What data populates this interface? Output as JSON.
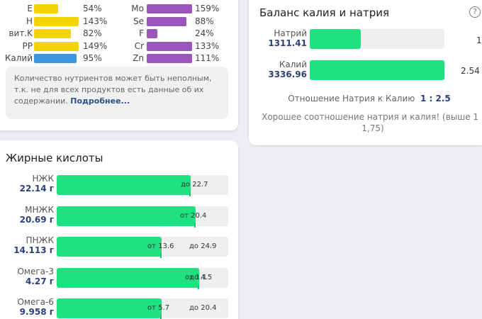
{
  "nutrients": {
    "left": [
      {
        "name": "E",
        "pct": "54%",
        "fill": 0.54,
        "color": "#f2d409"
      },
      {
        "name": "H",
        "pct": "143%",
        "fill": 1.0,
        "color": "#f2d409"
      },
      {
        "name": "вит.K",
        "pct": "82%",
        "fill": 0.82,
        "color": "#f2d409"
      },
      {
        "name": "PP",
        "pct": "149%",
        "fill": 1.0,
        "color": "#f2d409"
      },
      {
        "name": "Калий",
        "pct": "95%",
        "fill": 0.95,
        "color": "#3b94dc"
      }
    ],
    "right": [
      {
        "name": "Mo",
        "pct": "159%",
        "fill": 1.0,
        "color": "#9b55bd"
      },
      {
        "name": "Se",
        "pct": "88%",
        "fill": 0.88,
        "color": "#9b55bd"
      },
      {
        "name": "F",
        "pct": "24%",
        "fill": 0.24,
        "color": "#9b55bd"
      },
      {
        "name": "Cr",
        "pct": "133%",
        "fill": 1.0,
        "color": "#9b55bd"
      },
      {
        "name": "Zn",
        "pct": "111%",
        "fill": 1.0,
        "color": "#9b55bd"
      }
    ],
    "note_text": "Количество нутриентов может быть неполным, т.к. не для всех продуктов есть данные об их содержании.",
    "note_link": "Подробнее..."
  },
  "fatty": {
    "title": "Жирные кислоты",
    "rows": [
      {
        "name": "НЖК",
        "value": "22.14 г",
        "fill": 0.78,
        "min_label": "",
        "max_label": "до 22.7"
      },
      {
        "name": "МНЖК",
        "value": "20.69 г",
        "fill": 0.81,
        "min_label": "от 20.4",
        "max_label": ""
      },
      {
        "name": "ПНЖК",
        "value": "14.113 г",
        "fill": 0.61,
        "min_label": "от 13.6",
        "max_label": "до 24.9"
      },
      {
        "name": "Омега-3",
        "value": "4.27 г",
        "fill": 0.83,
        "min_label": "от 1.1",
        "max_label": "до 4.5"
      },
      {
        "name": "Омега-6",
        "value": "9.958 г",
        "fill": 0.61,
        "min_label": "от 5.7",
        "max_label": "до 20.4"
      }
    ]
  },
  "balance": {
    "title": "Баланс калия и натрия",
    "help_symbol": "?",
    "sodium": {
      "name": "Натрий",
      "value": "1311.41",
      "ratio": "1",
      "fill": 0.39
    },
    "potassium": {
      "name": "Калий",
      "value": "3336.96",
      "ratio": "2.54",
      "fill": 1.0
    },
    "ratio_label": "Отношение Натрия к Калию",
    "ratio_value": "1 : 2.5",
    "good_text": "Хорошее соотношение натрия и калия! (выше 1 : 1,75)"
  }
}
